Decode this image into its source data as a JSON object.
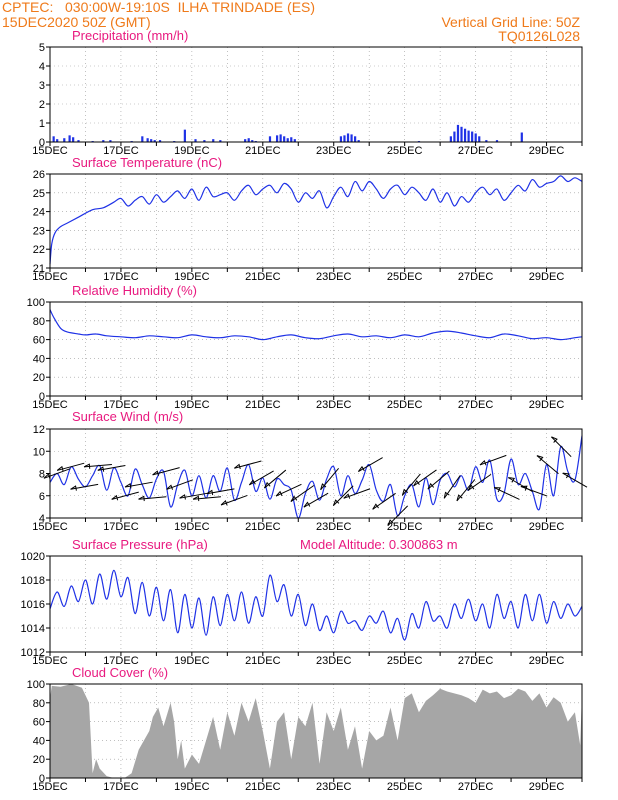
{
  "header": {
    "line1_left": "CPTEC:   030:00W-19:10S  ILHA TRINDADE (ES)",
    "line2_left": "15DEC2020 50Z (GMT)",
    "line1_right": "Vertical Grid Line: 50Z",
    "line2_right": "TQ0126L028"
  },
  "colors": {
    "header": "#ef7a1a",
    "title": "#e8197f",
    "series": "#1f32e6",
    "cloud": "#a6a6a6",
    "grid": "#9a9a9a"
  },
  "chart_data": [
    {
      "type": "bar",
      "title": "Precipitation (mm/h)",
      "x_ticks": [
        "15DEC",
        "17DEC",
        "19DEC",
        "21DEC",
        "23DEC",
        "25DEC",
        "27DEC",
        "29DEC"
      ],
      "ylim": [
        0,
        5
      ],
      "yticks": [
        0,
        1,
        2,
        3,
        4,
        5
      ],
      "x": [
        0.1,
        0.2,
        0.4,
        0.55,
        0.65,
        0.8,
        1.2,
        1.5,
        1.7,
        2.3,
        2.6,
        2.75,
        2.85,
        2.95,
        3.1,
        3.5,
        3.8,
        4.1,
        4.35,
        4.6,
        4.8,
        5.5,
        5.6,
        5.7,
        5.8,
        6.2,
        6.4,
        6.5,
        6.6,
        6.7,
        6.8,
        6.9,
        8.2,
        8.3,
        8.4,
        8.5,
        8.6,
        8.7,
        10.4,
        11.3,
        11.4,
        11.5,
        11.6,
        11.7,
        11.8,
        11.9,
        12.0,
        12.1,
        12.3,
        12.6,
        13.3
      ],
      "values": [
        0.3,
        0.15,
        0.2,
        0.35,
        0.25,
        0.1,
        0.05,
        0.1,
        0.1,
        0.05,
        0.3,
        0.2,
        0.15,
        0.1,
        0.1,
        0.05,
        0.65,
        0.15,
        0.1,
        0.15,
        0.1,
        0.15,
        0.2,
        0.1,
        0.05,
        0.3,
        0.35,
        0.4,
        0.3,
        0.2,
        0.25,
        0.15,
        0.3,
        0.35,
        0.45,
        0.4,
        0.3,
        0.1,
        0.05,
        0.3,
        0.55,
        0.9,
        0.8,
        0.7,
        0.6,
        0.55,
        0.45,
        0.3,
        0.1,
        0.1,
        0.5
      ]
    },
    {
      "type": "line",
      "title": "Surface Temperature (nC)",
      "x_ticks": [
        "15DEC",
        "17DEC",
        "19DEC",
        "21DEC",
        "23DEC",
        "25DEC",
        "27DEC",
        "29DEC"
      ],
      "ylim": [
        21,
        26
      ],
      "yticks": [
        21,
        22,
        23,
        24,
        25,
        26
      ],
      "x": [
        0,
        0.05,
        0.15,
        0.3,
        0.5,
        0.8,
        1.2,
        1.5,
        1.8,
        2.0,
        2.2,
        2.4,
        2.6,
        2.8,
        3.0,
        3.2,
        3.4,
        3.6,
        3.8,
        4.0,
        4.2,
        4.4,
        4.6,
        4.8,
        5.0,
        5.2,
        5.4,
        5.6,
        5.8,
        6.0,
        6.2,
        6.4,
        6.6,
        6.8,
        7.0,
        7.2,
        7.4,
        7.6,
        7.8,
        8.0,
        8.2,
        8.4,
        8.6,
        8.8,
        9.0,
        9.2,
        9.4,
        9.6,
        9.8,
        10.0,
        10.2,
        10.4,
        10.6,
        10.8,
        11.0,
        11.2,
        11.4,
        11.6,
        11.8,
        12.0,
        12.2,
        12.4,
        12.6,
        12.8,
        13.0,
        13.2,
        13.4,
        13.6,
        13.8,
        14.0,
        14.2,
        14.4,
        14.6,
        14.8,
        15.0
      ],
      "values": [
        21.2,
        22.3,
        22.9,
        23.2,
        23.4,
        23.7,
        24.1,
        24.2,
        24.5,
        24.7,
        24.3,
        24.6,
        24.8,
        24.4,
        24.9,
        24.5,
        24.8,
        25.1,
        24.7,
        25.2,
        24.6,
        25.3,
        24.8,
        24.9,
        25.0,
        24.6,
        25.1,
        25.4,
        24.9,
        25.2,
        25.4,
        25.0,
        25.5,
        25.2,
        24.5,
        25.0,
        24.7,
        25.1,
        24.2,
        24.8,
        25.3,
        24.8,
        25.6,
        25.1,
        25.6,
        25.2,
        24.7,
        25.2,
        25.4,
        24.9,
        25.3,
        25.0,
        24.6,
        25.2,
        24.5,
        25.0,
        24.3,
        24.8,
        24.5,
        25.0,
        25.3,
        24.9,
        25.2,
        24.6,
        25.0,
        25.4,
        25.1,
        25.7,
        25.3,
        25.5,
        25.6,
        25.9,
        25.6,
        25.8,
        25.6
      ]
    },
    {
      "type": "line",
      "title": "Relative Humidity (%)",
      "x_ticks": [
        "15DEC",
        "17DEC",
        "19DEC",
        "21DEC",
        "23DEC",
        "25DEC",
        "27DEC",
        "29DEC"
      ],
      "ylim": [
        0,
        100
      ],
      "yticks": [
        0,
        20,
        40,
        60,
        80,
        100
      ],
      "x": [
        0,
        0.1,
        0.3,
        0.5,
        0.8,
        1.0,
        1.3,
        1.6,
        2.0,
        2.4,
        2.8,
        3.2,
        3.6,
        4.0,
        4.4,
        4.8,
        5.2,
        5.6,
        6.0,
        6.4,
        6.8,
        7.2,
        7.6,
        8.0,
        8.4,
        8.8,
        9.2,
        9.6,
        10.0,
        10.4,
        10.8,
        11.2,
        11.6,
        12.0,
        12.4,
        12.8,
        13.2,
        13.6,
        14.0,
        14.4,
        14.8,
        15.0
      ],
      "values": [
        92,
        84,
        72,
        68,
        66,
        65,
        66,
        64,
        63,
        62,
        64,
        63,
        62,
        65,
        63,
        62,
        64,
        63,
        60,
        63,
        65,
        62,
        61,
        64,
        66,
        63,
        64,
        62,
        65,
        63,
        67,
        69,
        67,
        64,
        62,
        66,
        64,
        61,
        62,
        60,
        62,
        63
      ]
    },
    {
      "type": "line",
      "title": "Surface Wind (m/s)",
      "x_ticks": [
        "15DEC",
        "17DEC",
        "19DEC",
        "21DEC",
        "23DEC",
        "25DEC",
        "27DEC",
        "29DEC"
      ],
      "ylim": [
        4,
        12
      ],
      "yticks": [
        4,
        6,
        8,
        10,
        12
      ],
      "x": [
        0,
        0.2,
        0.4,
        0.6,
        0.8,
        1.0,
        1.2,
        1.4,
        1.6,
        1.8,
        2.0,
        2.2,
        2.4,
        2.6,
        2.8,
        3.0,
        3.2,
        3.4,
        3.6,
        3.8,
        4.0,
        4.2,
        4.4,
        4.6,
        4.8,
        5.0,
        5.2,
        5.4,
        5.6,
        5.8,
        6.0,
        6.2,
        6.4,
        6.6,
        6.8,
        7.0,
        7.2,
        7.4,
        7.6,
        7.8,
        8.0,
        8.2,
        8.4,
        8.6,
        8.8,
        9.0,
        9.2,
        9.4,
        9.6,
        9.8,
        10.0,
        10.2,
        10.4,
        10.6,
        10.8,
        11.0,
        11.2,
        11.4,
        11.6,
        11.8,
        12.0,
        12.2,
        12.4,
        12.6,
        12.8,
        13.0,
        13.2,
        13.4,
        13.6,
        13.8,
        14.0,
        14.2,
        14.4,
        14.6,
        14.8,
        15.0
      ],
      "values": [
        7.2,
        8.0,
        7.0,
        8.6,
        7.5,
        6.8,
        7.8,
        8.7,
        6.5,
        8.5,
        7.2,
        6.0,
        8.4,
        7.0,
        5.8,
        7.5,
        8.2,
        5.0,
        7.0,
        8.3,
        6.0,
        7.8,
        5.8,
        7.8,
        6.4,
        8.5,
        5.6,
        7.2,
        8.8,
        6.4,
        7.6,
        5.7,
        7.5,
        7.0,
        6.5,
        4.0,
        6.2,
        7.3,
        5.6,
        7.5,
        8.6,
        6.0,
        7.8,
        6.2,
        7.4,
        8.8,
        6.5,
        5.5,
        7.0,
        4.2,
        6.0,
        7.0,
        5.0,
        7.6,
        5.2,
        7.4,
        8.0,
        6.8,
        7.8,
        6.5,
        8.6,
        7.2,
        9.2,
        5.7,
        6.2,
        9.3,
        7.0,
        8.0,
        6.4,
        4.8,
        8.8,
        6.0,
        10.4,
        8.2,
        7.4,
        11.4
      ],
      "arrow_angle_deg": [
        200,
        195,
        190,
        185,
        190,
        195,
        190,
        185,
        195,
        200,
        190,
        185,
        190,
        200,
        195,
        210,
        220,
        205,
        215,
        210,
        230,
        225,
        200,
        210,
        215,
        225,
        230,
        215,
        220,
        235,
        230,
        215,
        200,
        155,
        150,
        160,
        140,
        135,
        150
      ]
    },
    {
      "type": "line",
      "title": "Surface Pressure (hPa)",
      "annotation": "Model Altitude: 0.300863 m",
      "x_ticks": [
        "15DEC",
        "17DEC",
        "19DEC",
        "21DEC",
        "23DEC",
        "25DEC",
        "27DEC",
        "29DEC"
      ],
      "ylim": [
        1012,
        1020
      ],
      "yticks": [
        1012,
        1014,
        1016,
        1018,
        1020
      ],
      "x": [
        0,
        0.2,
        0.4,
        0.6,
        0.8,
        1.0,
        1.2,
        1.4,
        1.6,
        1.8,
        2.0,
        2.2,
        2.4,
        2.6,
        2.8,
        3.0,
        3.2,
        3.4,
        3.6,
        3.8,
        4.0,
        4.2,
        4.4,
        4.6,
        4.8,
        5.0,
        5.2,
        5.4,
        5.6,
        5.8,
        6.0,
        6.2,
        6.4,
        6.6,
        6.8,
        7.0,
        7.2,
        7.4,
        7.6,
        7.8,
        8.0,
        8.2,
        8.4,
        8.6,
        8.8,
        9.0,
        9.2,
        9.4,
        9.6,
        9.8,
        10.0,
        10.2,
        10.4,
        10.6,
        10.8,
        11.0,
        11.2,
        11.4,
        11.6,
        11.8,
        12.0,
        12.2,
        12.4,
        12.6,
        12.8,
        13.0,
        13.2,
        13.4,
        13.6,
        13.8,
        14.0,
        14.2,
        14.4,
        14.6,
        14.8,
        15.0
      ],
      "values": [
        1015.6,
        1017.0,
        1015.8,
        1017.5,
        1016.2,
        1018.0,
        1016.0,
        1018.5,
        1016.4,
        1018.8,
        1016.6,
        1018.2,
        1015.2,
        1017.8,
        1015.0,
        1017.4,
        1014.6,
        1017.2,
        1013.6,
        1016.8,
        1014.0,
        1016.5,
        1013.4,
        1016.6,
        1014.2,
        1016.8,
        1014.6,
        1017.0,
        1014.4,
        1016.6,
        1015.0,
        1018.4,
        1016.2,
        1017.6,
        1015.0,
        1016.8,
        1014.2,
        1016.0,
        1013.8,
        1015.0,
        1013.6,
        1015.4,
        1014.4,
        1014.6,
        1013.8,
        1015.0,
        1014.4,
        1015.4,
        1013.6,
        1014.8,
        1013.0,
        1015.2,
        1014.0,
        1016.2,
        1014.6,
        1015.0,
        1014.0,
        1016.0,
        1014.8,
        1016.4,
        1014.6,
        1016.0,
        1014.0,
        1016.8,
        1014.8,
        1016.2,
        1014.0,
        1016.8,
        1014.6,
        1016.8,
        1014.4,
        1016.2,
        1014.8,
        1016.0,
        1015.0,
        1015.8
      ]
    },
    {
      "type": "area",
      "title": "Cloud Cover (%)",
      "x_ticks": [
        "15DEC",
        "17DEC",
        "19DEC",
        "21DEC",
        "23DEC",
        "25DEC",
        "27DEC",
        "29DEC"
      ],
      "ylim": [
        0,
        100
      ],
      "yticks": [
        0,
        20,
        40,
        60,
        80,
        100
      ],
      "x": [
        0,
        0.05,
        0.3,
        0.6,
        0.9,
        1.1,
        1.2,
        1.3,
        1.4,
        1.6,
        1.8,
        2.1,
        2.3,
        2.5,
        2.8,
        2.9,
        3.05,
        3.2,
        3.4,
        3.5,
        3.6,
        3.7,
        3.8,
        4.0,
        4.2,
        4.4,
        4.6,
        4.8,
        5.0,
        5.2,
        5.4,
        5.6,
        5.8,
        6.0,
        6.2,
        6.4,
        6.6,
        6.8,
        7.0,
        7.2,
        7.4,
        7.6,
        7.8,
        8.0,
        8.2,
        8.4,
        8.6,
        8.8,
        9.0,
        9.2,
        9.4,
        9.6,
        9.8,
        10.0,
        10.2,
        10.4,
        10.6,
        10.8,
        11.0,
        11.2,
        11.4,
        11.6,
        11.8,
        12.0,
        12.2,
        12.4,
        12.6,
        12.8,
        13.0,
        13.2,
        13.4,
        13.6,
        13.8,
        14.0,
        14.2,
        14.4,
        14.6,
        14.8,
        14.95,
        15.0
      ],
      "values": [
        85,
        98,
        97,
        100,
        96,
        80,
        5,
        20,
        10,
        2,
        0,
        0,
        5,
        30,
        50,
        65,
        75,
        55,
        80,
        60,
        20,
        40,
        10,
        25,
        15,
        40,
        65,
        30,
        70,
        45,
        80,
        60,
        85,
        50,
        10,
        60,
        70,
        20,
        65,
        55,
        80,
        15,
        70,
        50,
        75,
        30,
        55,
        10,
        50,
        40,
        45,
        75,
        40,
        85,
        90,
        70,
        82,
        88,
        95,
        92,
        90,
        88,
        85,
        80,
        94,
        90,
        92,
        85,
        88,
        95,
        92,
        82,
        90,
        75,
        86,
        80,
        60,
        70,
        35,
        90
      ]
    }
  ]
}
